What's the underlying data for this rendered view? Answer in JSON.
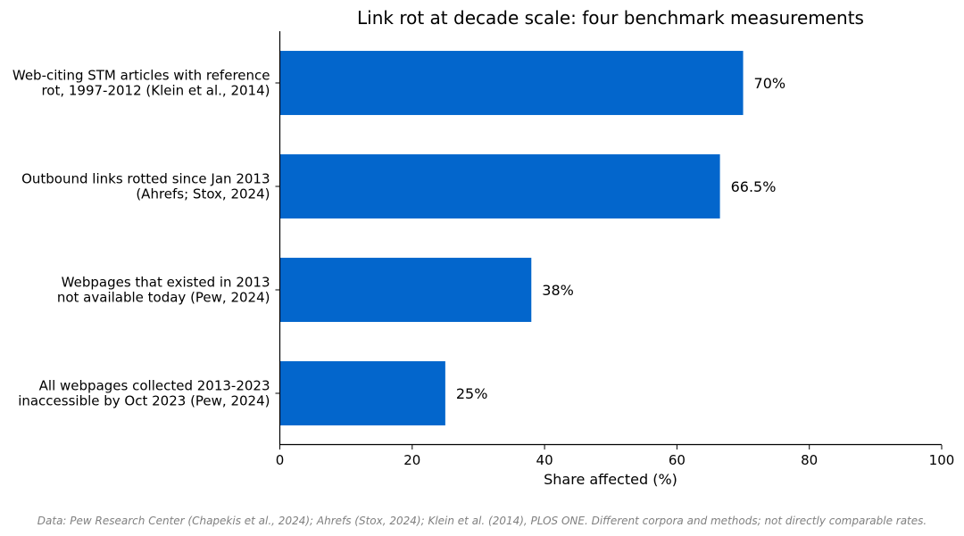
{
  "chart_data": {
    "type": "bar",
    "orientation": "horizontal",
    "title": "Link rot at decade scale: four benchmark measurements",
    "xlabel": "Share affected (%)",
    "ylabel": "",
    "xlim": [
      0,
      100
    ],
    "xticks": [
      "0",
      "20",
      "40",
      "60",
      "80",
      "100"
    ],
    "categories": [
      [
        "Web-citing STM articles with reference",
        "rot, 1997-2012 (Klein et al., 2014)"
      ],
      [
        "Outbound links rotted since Jan 2013",
        "(Ahrefs; Stox, 2024)"
      ],
      [
        "Webpages that existed in 2013",
        "not available today (Pew, 2024)"
      ],
      [
        "All webpages collected 2013-2023",
        "inaccessible by Oct 2023 (Pew, 2024)"
      ]
    ],
    "values": [
      70,
      66.5,
      38,
      25
    ],
    "data_labels": [
      "70%",
      "66.5%",
      "38%",
      "25%"
    ],
    "bar_color": "#0366cc",
    "grid": false,
    "footnote": "Data: Pew Research Center (Chapekis et al., 2024); Ahrefs (Stox, 2024); Klein et al. (2014), PLOS ONE. Different corpora and methods; not directly comparable rates."
  }
}
